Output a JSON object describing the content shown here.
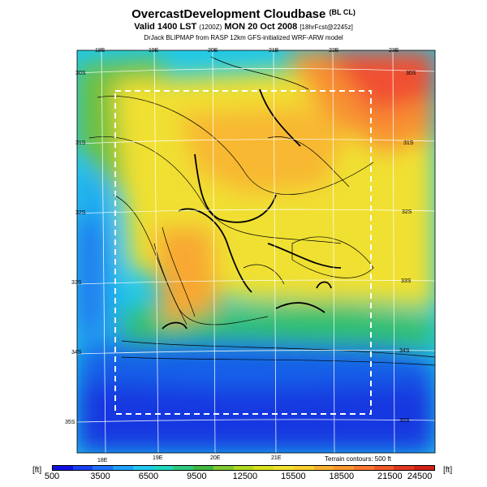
{
  "header": {
    "title": "OvercastDevelopment Cloudbase",
    "title_suffix": "(BL CL)",
    "valid_line": "Valid 1400 LST",
    "valid_code": "(1200Z)",
    "valid_date": "MON 20 Oct 2008",
    "forecast_info": "[18hrFcst@2245z]",
    "credit": "DrJack BLIPMAP from RASP 12km GFS-initialized WRF-ARW model"
  },
  "map": {
    "lon_labels_top": [
      "18E",
      "19E",
      "20E",
      "21E",
      "22E",
      "23E"
    ],
    "lon_labels_bottom": [
      "18E",
      "19E",
      "20E",
      "21E"
    ],
    "lat_labels_left": [
      "30S",
      "31S",
      "32S",
      "33S",
      "34S",
      "35S"
    ],
    "lat_labels_right": [
      "30S",
      "31S",
      "32S",
      "33S",
      "34S",
      "35S"
    ],
    "terrain_note": "Terrain contours: 500 ft"
  },
  "colorbar": {
    "unit_left": "[ft]",
    "unit_right": "[ft]",
    "labels": [
      "500",
      "3500",
      "6500",
      "9500",
      "12500",
      "15500",
      "18500",
      "21500",
      "24500"
    ],
    "colors": [
      "#1010e0",
      "#1840f0",
      "#2070f8",
      "#20a0f8",
      "#20c8f0",
      "#20d8c0",
      "#30c880",
      "#40b840",
      "#80c830",
      "#b0d820",
      "#d8e020",
      "#f0e030",
      "#f8d030",
      "#f8b030",
      "#f89830",
      "#f87830",
      "#f05828",
      "#e03820",
      "#d02018"
    ]
  }
}
